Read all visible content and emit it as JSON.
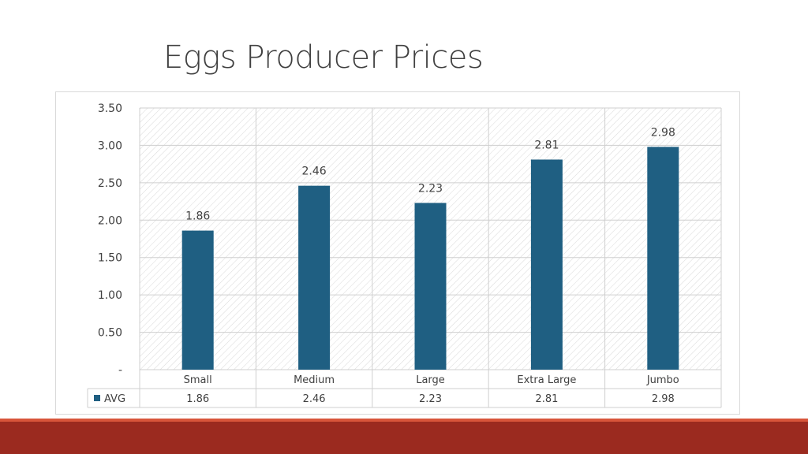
{
  "slide": {
    "title": "Eggs Producer Prices"
  },
  "colors": {
    "bar": "#1f5f82",
    "grid": "#cfcfcf",
    "hatch": "#d9d9d9",
    "text": "#404040",
    "footer_dark": "#9b2a1f",
    "footer_light": "#d8553a"
  },
  "chart_data": {
    "type": "bar",
    "title": "",
    "categories": [
      "Small",
      "Medium",
      "Large",
      "Extra Large",
      "Jumbo"
    ],
    "series": [
      {
        "name": "AVG",
        "values": [
          1.86,
          2.46,
          2.23,
          2.81,
          2.98
        ]
      }
    ],
    "data_labels": [
      "1.86",
      "2.46",
      "2.23",
      "2.81",
      "2.98"
    ],
    "ylim": [
      0,
      3.5
    ],
    "y_ticks": [
      "-",
      "0.50",
      "1.00",
      "1.50",
      "2.00",
      "2.50",
      "3.00",
      "3.50"
    ],
    "grid": true,
    "data_table": true,
    "legend": "data-table"
  }
}
